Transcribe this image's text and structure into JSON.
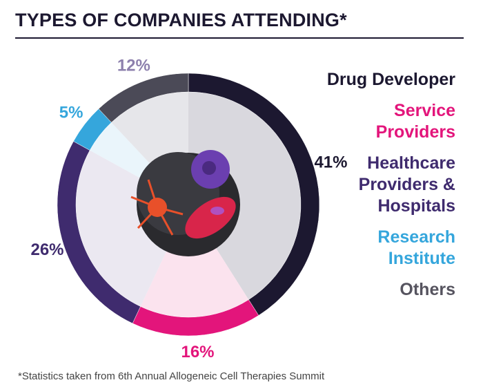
{
  "chart_data": {
    "type": "donut",
    "title": "TYPES OF COMPANIES ATTENDING*",
    "categories": [
      "Drug Developer",
      "Service Providers",
      "Healthcare Providers & Hospitals",
      "Research Institute",
      "Others"
    ],
    "values": [
      41,
      16,
      26,
      5,
      12
    ],
    "value_labels": [
      "41%",
      "16%",
      "26%",
      "5%",
      "12%"
    ],
    "colors": [
      "#1c1830",
      "#e3157b",
      "#3f2b6e",
      "#35a6dc",
      "#4b4a57"
    ],
    "label_colors": [
      "#1c1830",
      "#e3157b",
      "#3f2b6e",
      "#35a6dc",
      "#8d80ad"
    ],
    "legend_colors": [
      "#1c1830",
      "#e3157b",
      "#3f2b6e",
      "#35a6dc",
      "#56545f"
    ],
    "footnote": "*Statistics taken from 6th Annual Allogeneic Cell Therapies Summit"
  }
}
